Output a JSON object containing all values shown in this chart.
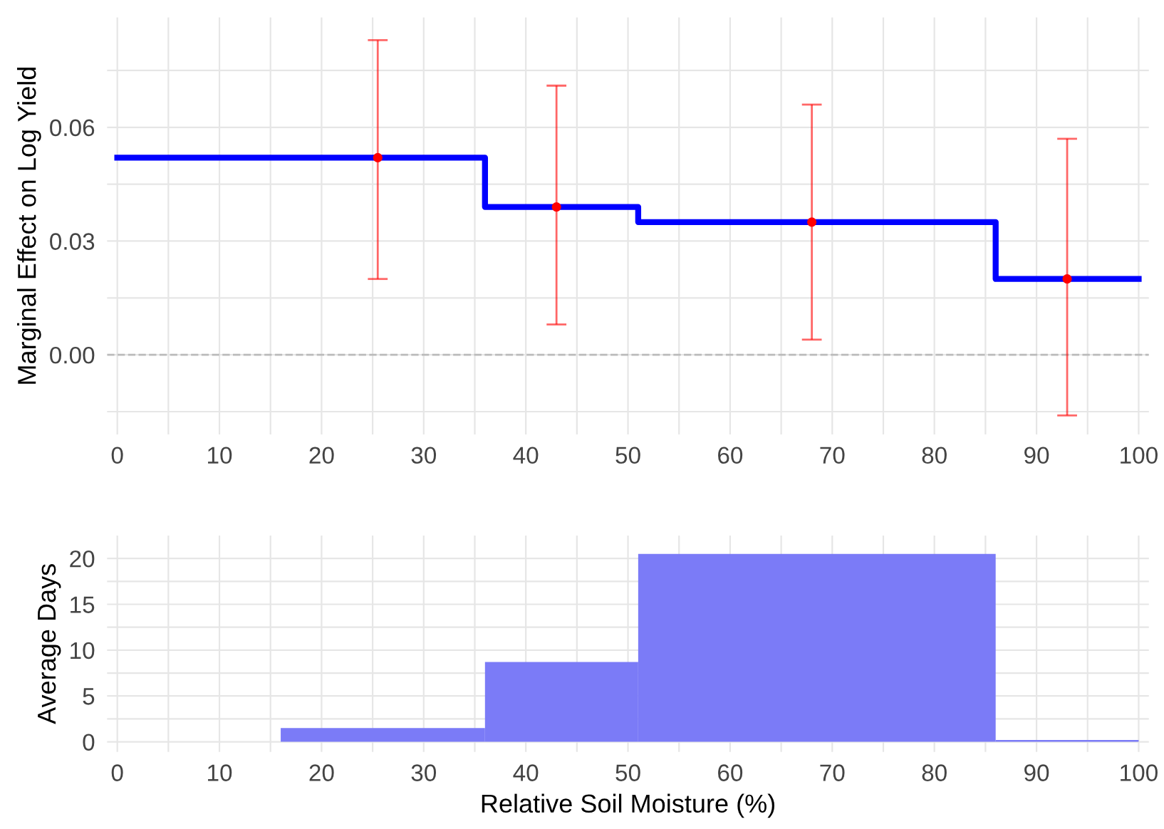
{
  "chart_data": [
    {
      "type": "step",
      "ylabel": "Marginal Effect on Log Yield",
      "xlim": [
        -1,
        101
      ],
      "ylim": [
        -0.021,
        0.089
      ],
      "xticks": [
        0,
        {
          "value": 5,
          "label": null
        },
        10,
        {
          "value": 15,
          "label": null
        },
        20,
        {
          "value": 25,
          "label": null
        },
        30,
        {
          "value": 35,
          "label": null
        },
        40,
        {
          "value": 45,
          "label": null
        },
        50,
        {
          "value": 55,
          "label": null
        },
        60,
        {
          "value": 65,
          "label": null
        },
        70,
        {
          "value": 75,
          "label": null
        },
        80,
        {
          "value": 85,
          "label": null
        },
        90,
        {
          "value": 95,
          "label": null
        },
        100
      ],
      "yticks": [
        {
          "value": -0.015,
          "label": null
        },
        {
          "value": 0,
          "label": "0.00"
        },
        {
          "value": 0.015,
          "label": null
        },
        {
          "value": 0.03,
          "label": "0.03"
        },
        {
          "value": 0.045,
          "label": null
        },
        {
          "value": 0.06,
          "label": "0.06"
        },
        {
          "value": 0.075,
          "label": null
        }
      ],
      "grid": true,
      "series": [
        {
          "type": "step",
          "color": "#0000ff",
          "x": [
            0,
            36,
            51,
            86,
            100
          ],
          "values": [
            0.052,
            0.039,
            0.035,
            0.02,
            0.02
          ]
        },
        {
          "type": "scatter",
          "color": "#ff0000",
          "marker": "circle",
          "x": [
            25.5,
            43,
            68,
            93
          ],
          "values": [
            0.052,
            0.039,
            0.035,
            0.02
          ],
          "errors": [
            [
              0.02,
              0.083
            ],
            [
              0.008,
              0.071
            ],
            [
              0.004,
              0.066
            ],
            [
              -0.016,
              0.057
            ]
          ]
        }
      ],
      "ref_lines": [
        {
          "axis": "y",
          "value": 0,
          "color": "#bbbbbb",
          "line_style": "dashed"
        }
      ]
    },
    {
      "type": "histogram",
      "xlabel": "Relative Soil Moisture (%)",
      "ylabel": "Average Days",
      "xlim": [
        -1,
        101
      ],
      "ylim": [
        -1.1,
        22.5
      ],
      "xticks": [
        0,
        {
          "value": 5,
          "label": null
        },
        10,
        {
          "value": 15,
          "label": null
        },
        20,
        {
          "value": 25,
          "label": null
        },
        30,
        {
          "value": 35,
          "label": null
        },
        40,
        {
          "value": 45,
          "label": null
        },
        50,
        {
          "value": 55,
          "label": null
        },
        60,
        {
          "value": 65,
          "label": null
        },
        70,
        {
          "value": 75,
          "label": null
        },
        80,
        {
          "value": 85,
          "label": null
        },
        90,
        {
          "value": 95,
          "label": null
        },
        100
      ],
      "yticks": [
        0,
        {
          "value": 2.5,
          "label": null
        },
        5,
        {
          "value": 7.5,
          "label": null
        },
        10,
        {
          "value": 12.5,
          "label": null
        },
        15,
        {
          "value": 17.5,
          "label": null
        },
        20
      ],
      "grid": true,
      "color": "#7b7bf7",
      "bins": [
        16,
        36,
        51,
        86,
        100
      ],
      "values": [
        1.5,
        8.7,
        20.5,
        0.2
      ]
    }
  ]
}
